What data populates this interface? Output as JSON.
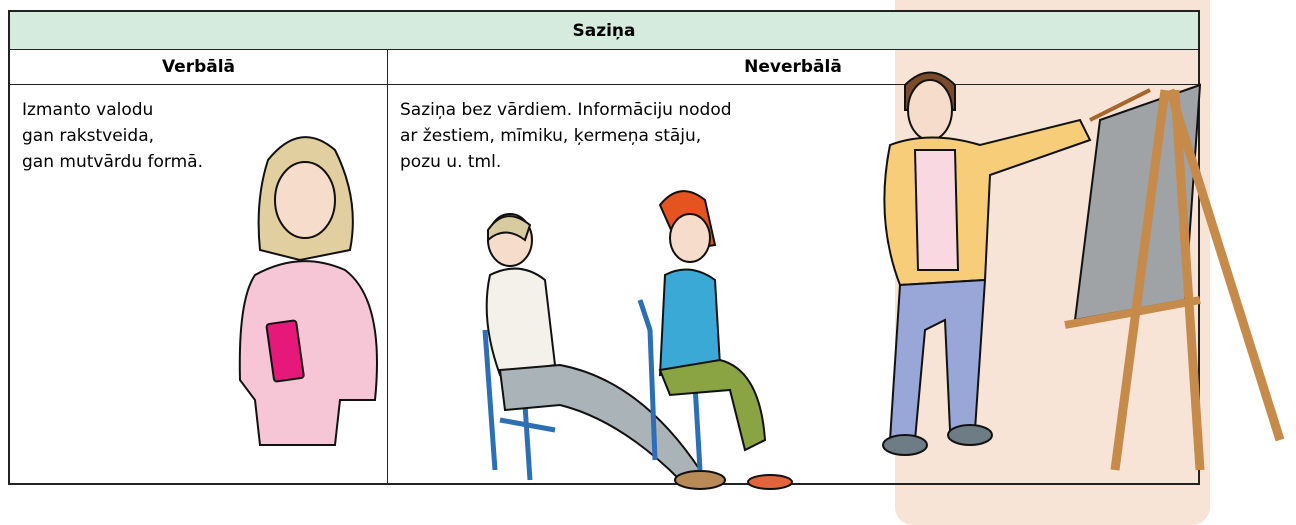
{
  "table": {
    "title": "Saziņa",
    "columns": [
      "Verbālā",
      "Neverbālā"
    ],
    "cells": [
      [
        "Izmanto valodu",
        "gan rakstveida,",
        "gan mutvārdu formā."
      ],
      [
        "Saziņa bez vārdiem. Informāciju nodod",
        "ar žestiem, mīmiku, ķermeņa stāju,",
        "pozu u. tml."
      ]
    ]
  }
}
